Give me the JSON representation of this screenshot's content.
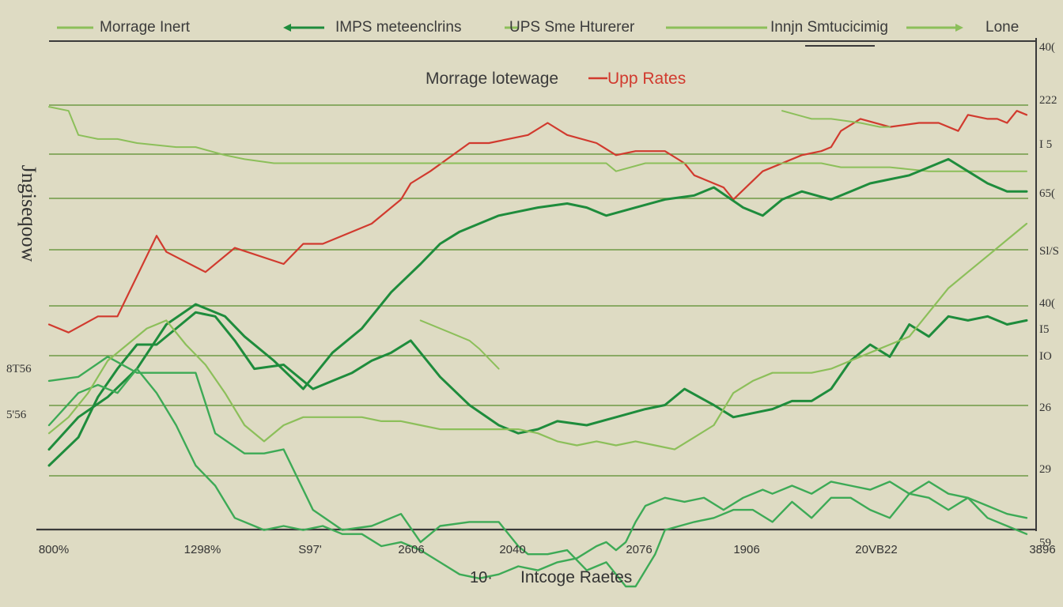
{
  "chart_data": {
    "type": "line",
    "title": "Morrage lotewage",
    "title_highlight": "Upp Rates",
    "xlabel_prefix": "10·",
    "xlabel": "Intcoge Raetes",
    "ylabel": "Jngiseqoow",
    "legend": [
      {
        "label": "Morrage Inert",
        "color": "#8cbf5a"
      },
      {
        "label": "IMPS meteenclrins",
        "color": "#1e8c3c"
      },
      {
        "label": "UPS Sme Hturerer",
        "color": "#8cbf5a"
      },
      {
        "label": "Innjn Smtucicimig",
        "color": "#8cbf5a"
      },
      {
        "label": "Lone",
        "color": "#8cbf5a"
      }
    ],
    "x_ticks": [
      "800%",
      "1298%",
      "S97'",
      "2606",
      "2040",
      "2076",
      "1906",
      "20VB22",
      "3896"
    ],
    "y_ticks_left": [
      "8T56",
      "5'56"
    ],
    "y_ticks_right": [
      "40(",
      "222",
      "I 5",
      "65(",
      "Sl/S",
      "40(",
      "I5",
      "IO",
      "26",
      "29",
      "59"
    ],
    "x_range": [
      0,
      100
    ],
    "y_range": [
      0,
      100
    ],
    "grid": "horizontal",
    "legend_placement": "top",
    "colors": {
      "background": "#dedbc3",
      "red": "#d13a2e",
      "dark_green": "#1e8c3c",
      "mid_green": "#3daa56",
      "light_green": "#8cbf5a",
      "grid": "#6f9a45"
    },
    "series": [
      {
        "key": "red-rates",
        "color": "#d13a2e",
        "width": 2.2,
        "x": [
          0,
          2,
          5,
          7,
          11,
          12,
          16,
          19,
          24,
          26,
          28,
          33,
          36,
          37,
          39,
          43,
          45,
          49,
          51,
          53,
          56,
          58,
          60,
          63,
          65,
          66,
          69,
          70,
          73,
          77,
          79,
          80,
          81,
          83,
          86,
          89,
          91,
          93,
          94,
          96,
          97,
          98,
          99,
          100
        ],
        "y": [
          45,
          43,
          47,
          47,
          67,
          63,
          58,
          64,
          60,
          65,
          65,
          70,
          76,
          80,
          83,
          90,
          90,
          92,
          95,
          92,
          90,
          87,
          88,
          88,
          85,
          82,
          79,
          76,
          83,
          87,
          88,
          89,
          93,
          96,
          94,
          95,
          95,
          93,
          97,
          96,
          96,
          95,
          98,
          97
        ]
      },
      {
        "key": "upper-light-green",
        "color": "#8cbf5a",
        "width": 2,
        "x": [
          0,
          2,
          3,
          5,
          7,
          9,
          13,
          15,
          18,
          20,
          23,
          28,
          33,
          43,
          53,
          57,
          58,
          61,
          66,
          73,
          75,
          77,
          79,
          81,
          86,
          90,
          100
        ],
        "y": [
          99,
          98,
          92,
          91,
          91,
          90,
          89,
          89,
          87,
          86,
          85,
          85,
          85,
          85,
          85,
          85,
          83,
          85,
          85,
          85,
          85,
          85,
          85,
          84,
          84,
          83,
          83
        ]
      },
      {
        "key": "upper-light-green-right",
        "color": "#8cbf5a",
        "width": 2,
        "x": [
          75,
          78,
          80,
          83,
          85,
          86
        ],
        "y": [
          98,
          96,
          96,
          95,
          94,
          94
        ]
      },
      {
        "key": "green-main-a",
        "color": "#1e8c3c",
        "width": 3,
        "x": [
          0,
          3,
          6,
          9,
          12,
          15,
          18,
          20,
          23,
          26,
          29,
          32,
          35,
          38,
          40,
          42,
          44,
          46,
          48,
          50,
          53,
          55,
          57,
          60,
          63,
          66,
          68,
          71,
          73,
          75,
          77,
          80,
          82,
          84,
          86,
          88,
          90,
          92,
          94,
          96,
          98,
          100
        ],
        "y": [
          14,
          22,
          27,
          34,
          45,
          50,
          47,
          42,
          36,
          29,
          38,
          44,
          53,
          60,
          65,
          68,
          70,
          72,
          73,
          74,
          75,
          74,
          72,
          74,
          76,
          77,
          79,
          74,
          72,
          76,
          78,
          76,
          78,
          80,
          81,
          82,
          84,
          86,
          83,
          80,
          78,
          78
        ]
      },
      {
        "key": "green-main-b",
        "color": "#1e8c3c",
        "width": 3,
        "x": [
          0,
          3,
          5,
          7,
          9,
          11,
          13,
          15,
          17,
          19,
          21,
          24,
          27,
          29,
          31,
          33,
          35,
          37,
          40,
          43,
          46,
          48,
          50,
          52,
          55,
          58,
          61,
          63,
          65,
          68,
          70,
          72,
          74,
          76,
          78,
          80,
          82,
          84,
          86,
          88,
          90,
          92,
          94,
          96,
          98,
          100
        ],
        "y": [
          10,
          17,
          27,
          34,
          40,
          40,
          44,
          48,
          47,
          41,
          34,
          35,
          29,
          31,
          33,
          36,
          38,
          41,
          32,
          25,
          20,
          18,
          19,
          21,
          20,
          22,
          24,
          25,
          29,
          25,
          22,
          23,
          24,
          26,
          26,
          29,
          36,
          40,
          37,
          45,
          42,
          47,
          46,
          47,
          45,
          46
        ]
      },
      {
        "key": "green-lower",
        "color": "#3daa56",
        "width": 2.4,
        "x": [
          0,
          3,
          6,
          9,
          12,
          15,
          17,
          20,
          22,
          24,
          27,
          30,
          33,
          36,
          38,
          40,
          43,
          46,
          48,
          49,
          51,
          53,
          55,
          57,
          59,
          60,
          62,
          63,
          66,
          68,
          70,
          72,
          74,
          76,
          78,
          80,
          82,
          84,
          86,
          88,
          90,
          92,
          94,
          96,
          98,
          100
        ],
        "y": [
          31,
          32,
          37,
          33,
          33,
          33,
          18,
          13,
          13,
          14,
          -1,
          -6,
          -5,
          -2,
          -9,
          -5,
          -4,
          -4,
          -10,
          -12,
          -12,
          -11,
          -16,
          -14,
          -20,
          -20,
          -12,
          -6,
          -4,
          -3,
          -1,
          -1,
          -4,
          1,
          -3,
          2,
          2,
          -1,
          -3,
          3,
          2,
          -1,
          2,
          -3,
          -5,
          -7
        ]
      },
      {
        "key": "green-lower-b",
        "color": "#3daa56",
        "width": 2.4,
        "x": [
          0,
          3,
          5,
          7,
          9,
          11,
          13,
          15,
          17,
          19,
          21,
          22,
          24,
          26,
          28,
          30,
          32,
          34,
          36,
          38,
          40,
          42,
          44,
          46,
          48,
          50,
          52,
          54,
          56,
          57,
          58,
          59,
          60,
          61,
          63,
          65,
          67,
          69,
          71,
          73,
          74,
          76,
          78,
          80,
          82,
          84,
          86,
          88,
          90,
          92,
          94,
          96,
          98,
          100
        ],
        "y": [
          20,
          28,
          30,
          28,
          34,
          28,
          20,
          10,
          5,
          -3,
          -5,
          -6,
          -5,
          -6,
          -5,
          -7,
          -7,
          -10,
          -9,
          -11,
          -14,
          -17,
          -18,
          -17,
          -15,
          -16,
          -14,
          -13,
          -10,
          -9,
          -11,
          -9,
          -4,
          0,
          2,
          1,
          2,
          -1,
          2,
          4,
          3,
          5,
          3,
          6,
          5,
          4,
          6,
          3,
          6,
          3,
          2,
          0,
          -2,
          -3
        ]
      },
      {
        "key": "light-green-mid",
        "color": "#8cbf5a",
        "width": 2.2,
        "x": [
          0,
          2,
          4,
          6,
          8,
          10,
          12,
          14,
          16,
          18,
          20,
          22,
          24,
          26,
          28,
          30,
          32,
          34,
          36,
          38,
          40,
          42,
          44,
          46,
          48,
          50,
          52,
          54,
          56,
          58,
          60,
          62,
          64,
          66,
          68,
          70,
          72,
          74,
          76,
          78,
          80,
          82,
          84,
          86,
          88,
          90,
          92,
          94,
          96,
          98,
          100
        ],
        "y": [
          18,
          22,
          28,
          36,
          40,
          44,
          46,
          40,
          35,
          28,
          20,
          16,
          20,
          22,
          22,
          22,
          22,
          21,
          21,
          20,
          19,
          19,
          19,
          19,
          19,
          18,
          16,
          15,
          16,
          15,
          16,
          15,
          14,
          17,
          20,
          28,
          31,
          33,
          33,
          33,
          34,
          36,
          38,
          40,
          42,
          48,
          54,
          58,
          62,
          66,
          70
        ]
      },
      {
        "key": "light-green-left-drop",
        "color": "#8cbf5a",
        "width": 2,
        "x": [
          38,
          41,
          43,
          44,
          46
        ],
        "y": [
          46,
          43,
          41,
          39,
          34
        ]
      }
    ]
  }
}
